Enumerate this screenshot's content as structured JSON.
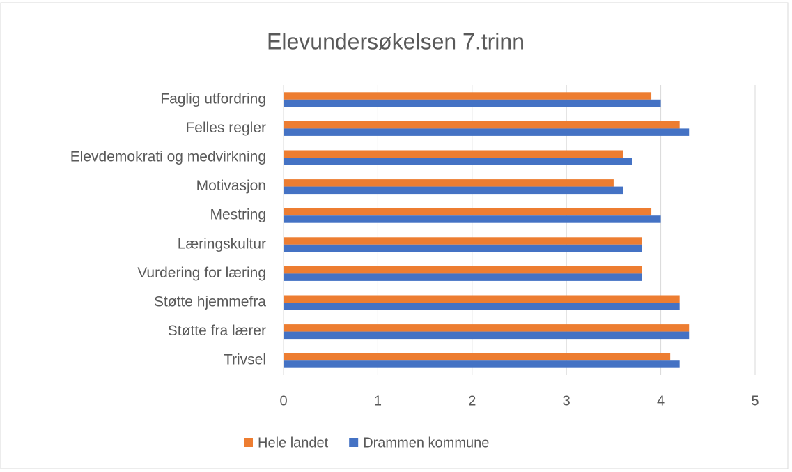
{
  "chart_data": {
    "type": "barh",
    "title": "Elevundersøkelsen  7.trinn",
    "categories": [
      "Faglig utfordring",
      "Felles regler",
      "Elevdemokrati og medvirkning",
      "Motivasjon",
      "Mestring",
      "Læringskultur",
      "Vurdering for læring",
      "Støtte hjemmefra",
      "Støtte fra lærer",
      "Trivsel"
    ],
    "series": [
      {
        "name": "Hele landet",
        "color": "#ed7d31",
        "values": [
          3.9,
          4.2,
          3.6,
          3.5,
          3.9,
          3.8,
          3.8,
          4.2,
          4.3,
          4.1
        ]
      },
      {
        "name": "Drammen kommune",
        "color": "#4472c4",
        "values": [
          4.0,
          4.3,
          3.7,
          3.6,
          4.0,
          3.8,
          3.8,
          4.2,
          4.3,
          4.2
        ]
      }
    ],
    "xlim": [
      0,
      5
    ],
    "xticks": [
      0,
      1,
      2,
      3,
      4,
      5
    ],
    "grid": true,
    "legend": "bottom"
  }
}
